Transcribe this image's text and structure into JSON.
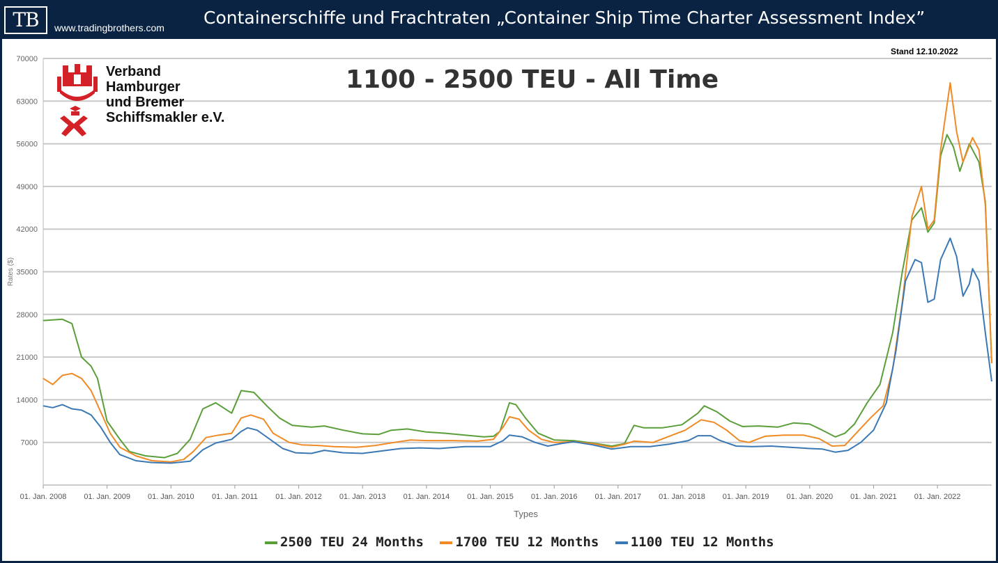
{
  "header": {
    "logo": "TB",
    "site": "www.tradingbrothers.com",
    "title": "Containerschiffe und Frachtraten „Container Ship Time Charter Assessment Index”"
  },
  "org": {
    "line1": "Verband",
    "line2": "Hamburger",
    "line3": "und Bremer",
    "line4": "Schiffsmakler e.V."
  },
  "stand": "Stand 12.10.2022",
  "colors": {
    "s2500": "#5a9e3a",
    "s1700": "#f08a24",
    "s1100": "#3a78b5"
  },
  "chart_data": {
    "type": "line",
    "title": "1100 - 2500 TEU - All Time",
    "xlabel": "Types",
    "ylabel": "Rates ($)",
    "ylim": [
      0,
      70000
    ],
    "xlim": [
      2008.0,
      2022.85
    ],
    "yticks": [
      7000,
      14000,
      21000,
      28000,
      35000,
      42000,
      49000,
      56000,
      63000,
      70000
    ],
    "xtick_labels": [
      "01. Jan. 2008",
      "01. Jan. 2009",
      "01. Jan. 2010",
      "01. Jan. 2011",
      "01. Jan. 2012",
      "01. Jan. 2013",
      "01. Jan. 2014",
      "01. Jan. 2015",
      "01. Jan. 2016",
      "01. Jan. 2017",
      "01. Jan. 2018",
      "01. Jan. 2019",
      "01. Jan. 2020",
      "01. Jan. 2021",
      "01. Jan. 2022"
    ],
    "xtick_values": [
      2008,
      2009,
      2010,
      2011,
      2012,
      2013,
      2014,
      2015,
      2016,
      2017,
      2018,
      2019,
      2020,
      2021,
      2022
    ],
    "grid": true,
    "legend_position": "bottom",
    "series": [
      {
        "name": "2500 TEU 24 Months",
        "color": "#5a9e3a",
        "points": [
          [
            2008.0,
            27000
          ],
          [
            2008.3,
            27200
          ],
          [
            2008.45,
            26500
          ],
          [
            2008.6,
            21000
          ],
          [
            2008.75,
            19500
          ],
          [
            2008.85,
            17500
          ],
          [
            2009.0,
            10500
          ],
          [
            2009.2,
            7500
          ],
          [
            2009.35,
            5500
          ],
          [
            2009.6,
            4800
          ],
          [
            2009.9,
            4500
          ],
          [
            2010.1,
            5200
          ],
          [
            2010.3,
            7500
          ],
          [
            2010.5,
            12500
          ],
          [
            2010.7,
            13500
          ],
          [
            2010.95,
            11800
          ],
          [
            2011.1,
            15500
          ],
          [
            2011.3,
            15200
          ],
          [
            2011.5,
            13000
          ],
          [
            2011.7,
            11000
          ],
          [
            2011.9,
            9800
          ],
          [
            2012.2,
            9500
          ],
          [
            2012.4,
            9700
          ],
          [
            2012.7,
            9000
          ],
          [
            2013.0,
            8400
          ],
          [
            2013.25,
            8300
          ],
          [
            2013.45,
            9000
          ],
          [
            2013.7,
            9200
          ],
          [
            2014.0,
            8700
          ],
          [
            2014.3,
            8500
          ],
          [
            2014.6,
            8200
          ],
          [
            2014.9,
            7900
          ],
          [
            2015.05,
            8000
          ],
          [
            2015.15,
            8800
          ],
          [
            2015.3,
            13500
          ],
          [
            2015.4,
            13200
          ],
          [
            2015.55,
            11000
          ],
          [
            2015.75,
            8500
          ],
          [
            2016.0,
            7400
          ],
          [
            2016.3,
            7300
          ],
          [
            2016.6,
            6900
          ],
          [
            2016.9,
            6400
          ],
          [
            2017.1,
            6800
          ],
          [
            2017.25,
            9800
          ],
          [
            2017.4,
            9400
          ],
          [
            2017.7,
            9400
          ],
          [
            2018.0,
            9900
          ],
          [
            2018.25,
            11800
          ],
          [
            2018.35,
            13000
          ],
          [
            2018.55,
            12000
          ],
          [
            2018.75,
            10500
          ],
          [
            2018.95,
            9600
          ],
          [
            2019.2,
            9700
          ],
          [
            2019.5,
            9500
          ],
          [
            2019.75,
            10200
          ],
          [
            2020.0,
            10000
          ],
          [
            2020.2,
            9000
          ],
          [
            2020.4,
            7900
          ],
          [
            2020.55,
            8500
          ],
          [
            2020.7,
            10000
          ],
          [
            2020.9,
            13500
          ],
          [
            2021.1,
            16500
          ],
          [
            2021.3,
            25000
          ],
          [
            2021.45,
            35000
          ],
          [
            2021.6,
            43500
          ],
          [
            2021.75,
            45500
          ],
          [
            2021.85,
            41500
          ],
          [
            2021.95,
            43000
          ],
          [
            2022.05,
            54000
          ],
          [
            2022.15,
            57500
          ],
          [
            2022.25,
            55500
          ],
          [
            2022.35,
            51500
          ],
          [
            2022.5,
            56000
          ],
          [
            2022.65,
            53000
          ],
          [
            2022.75,
            46500
          ],
          [
            2022.85,
            20000
          ]
        ]
      },
      {
        "name": "1700 TEU 12 Months",
        "color": "#f08a24",
        "points": [
          [
            2008.0,
            17500
          ],
          [
            2008.15,
            16500
          ],
          [
            2008.3,
            18000
          ],
          [
            2008.45,
            18300
          ],
          [
            2008.6,
            17500
          ],
          [
            2008.75,
            15500
          ],
          [
            2008.9,
            12000
          ],
          [
            2009.05,
            8500
          ],
          [
            2009.2,
            6200
          ],
          [
            2009.45,
            4800
          ],
          [
            2009.7,
            4000
          ],
          [
            2010.0,
            3800
          ],
          [
            2010.2,
            4200
          ],
          [
            2010.35,
            5500
          ],
          [
            2010.55,
            7800
          ],
          [
            2010.75,
            8200
          ],
          [
            2010.95,
            8500
          ],
          [
            2011.1,
            11000
          ],
          [
            2011.25,
            11500
          ],
          [
            2011.45,
            10800
          ],
          [
            2011.6,
            8500
          ],
          [
            2011.85,
            7000
          ],
          [
            2012.05,
            6600
          ],
          [
            2012.3,
            6500
          ],
          [
            2012.55,
            6300
          ],
          [
            2012.9,
            6200
          ],
          [
            2013.2,
            6500
          ],
          [
            2013.5,
            7000
          ],
          [
            2013.75,
            7400
          ],
          [
            2014.0,
            7300
          ],
          [
            2014.4,
            7300
          ],
          [
            2014.8,
            7200
          ],
          [
            2015.05,
            7500
          ],
          [
            2015.2,
            9500
          ],
          [
            2015.3,
            11200
          ],
          [
            2015.45,
            10800
          ],
          [
            2015.6,
            9000
          ],
          [
            2015.8,
            7500
          ],
          [
            2016.0,
            7000
          ],
          [
            2016.3,
            7100
          ],
          [
            2016.6,
            6800
          ],
          [
            2016.9,
            6200
          ],
          [
            2017.1,
            6700
          ],
          [
            2017.25,
            7200
          ],
          [
            2017.55,
            7000
          ],
          [
            2017.8,
            8000
          ],
          [
            2018.05,
            9000
          ],
          [
            2018.3,
            10700
          ],
          [
            2018.5,
            10300
          ],
          [
            2018.7,
            9000
          ],
          [
            2018.9,
            7300
          ],
          [
            2019.05,
            7000
          ],
          [
            2019.3,
            8000
          ],
          [
            2019.6,
            8200
          ],
          [
            2019.9,
            8200
          ],
          [
            2020.15,
            7600
          ],
          [
            2020.35,
            6400
          ],
          [
            2020.55,
            6500
          ],
          [
            2020.7,
            8200
          ],
          [
            2020.95,
            11000
          ],
          [
            2021.15,
            13000
          ],
          [
            2021.3,
            19000
          ],
          [
            2021.45,
            30000
          ],
          [
            2021.6,
            44000
          ],
          [
            2021.75,
            49000
          ],
          [
            2021.85,
            42000
          ],
          [
            2021.95,
            43500
          ],
          [
            2022.05,
            55000
          ],
          [
            2022.2,
            66000
          ],
          [
            2022.3,
            58000
          ],
          [
            2022.4,
            53000
          ],
          [
            2022.55,
            57000
          ],
          [
            2022.65,
            55000
          ],
          [
            2022.75,
            46000
          ],
          [
            2022.85,
            20000
          ]
        ]
      },
      {
        "name": "1100 TEU 12 Months",
        "color": "#3a78b5",
        "points": [
          [
            2008.0,
            13000
          ],
          [
            2008.15,
            12700
          ],
          [
            2008.3,
            13200
          ],
          [
            2008.45,
            12500
          ],
          [
            2008.6,
            12300
          ],
          [
            2008.75,
            11500
          ],
          [
            2008.9,
            9500
          ],
          [
            2009.05,
            7000
          ],
          [
            2009.2,
            5000
          ],
          [
            2009.45,
            4000
          ],
          [
            2009.7,
            3700
          ],
          [
            2010.0,
            3600
          ],
          [
            2010.3,
            3900
          ],
          [
            2010.5,
            5800
          ],
          [
            2010.7,
            6900
          ],
          [
            2010.95,
            7500
          ],
          [
            2011.1,
            8800
          ],
          [
            2011.2,
            9400
          ],
          [
            2011.35,
            9000
          ],
          [
            2011.55,
            7500
          ],
          [
            2011.75,
            6000
          ],
          [
            2011.95,
            5300
          ],
          [
            2012.2,
            5200
          ],
          [
            2012.4,
            5700
          ],
          [
            2012.7,
            5300
          ],
          [
            2013.0,
            5200
          ],
          [
            2013.3,
            5600
          ],
          [
            2013.6,
            6000
          ],
          [
            2013.9,
            6100
          ],
          [
            2014.2,
            6000
          ],
          [
            2014.6,
            6300
          ],
          [
            2015.0,
            6300
          ],
          [
            2015.2,
            7300
          ],
          [
            2015.3,
            8200
          ],
          [
            2015.5,
            7900
          ],
          [
            2015.7,
            7000
          ],
          [
            2015.9,
            6400
          ],
          [
            2016.1,
            6800
          ],
          [
            2016.3,
            7100
          ],
          [
            2016.6,
            6600
          ],
          [
            2016.9,
            5900
          ],
          [
            2017.2,
            6300
          ],
          [
            2017.5,
            6300
          ],
          [
            2017.8,
            6700
          ],
          [
            2018.1,
            7300
          ],
          [
            2018.25,
            8100
          ],
          [
            2018.45,
            8100
          ],
          [
            2018.6,
            7300
          ],
          [
            2018.85,
            6400
          ],
          [
            2019.1,
            6300
          ],
          [
            2019.4,
            6400
          ],
          [
            2019.7,
            6200
          ],
          [
            2020.0,
            6000
          ],
          [
            2020.2,
            5900
          ],
          [
            2020.4,
            5400
          ],
          [
            2020.6,
            5700
          ],
          [
            2020.8,
            7000
          ],
          [
            2021.0,
            9000
          ],
          [
            2021.2,
            13500
          ],
          [
            2021.35,
            22000
          ],
          [
            2021.5,
            33500
          ],
          [
            2021.65,
            37000
          ],
          [
            2021.75,
            36500
          ],
          [
            2021.85,
            30000
          ],
          [
            2021.95,
            30500
          ],
          [
            2022.05,
            37000
          ],
          [
            2022.2,
            40500
          ],
          [
            2022.3,
            37500
          ],
          [
            2022.4,
            31000
          ],
          [
            2022.5,
            33000
          ],
          [
            2022.55,
            35500
          ],
          [
            2022.65,
            33500
          ],
          [
            2022.75,
            25000
          ],
          [
            2022.85,
            17000
          ]
        ]
      }
    ]
  }
}
